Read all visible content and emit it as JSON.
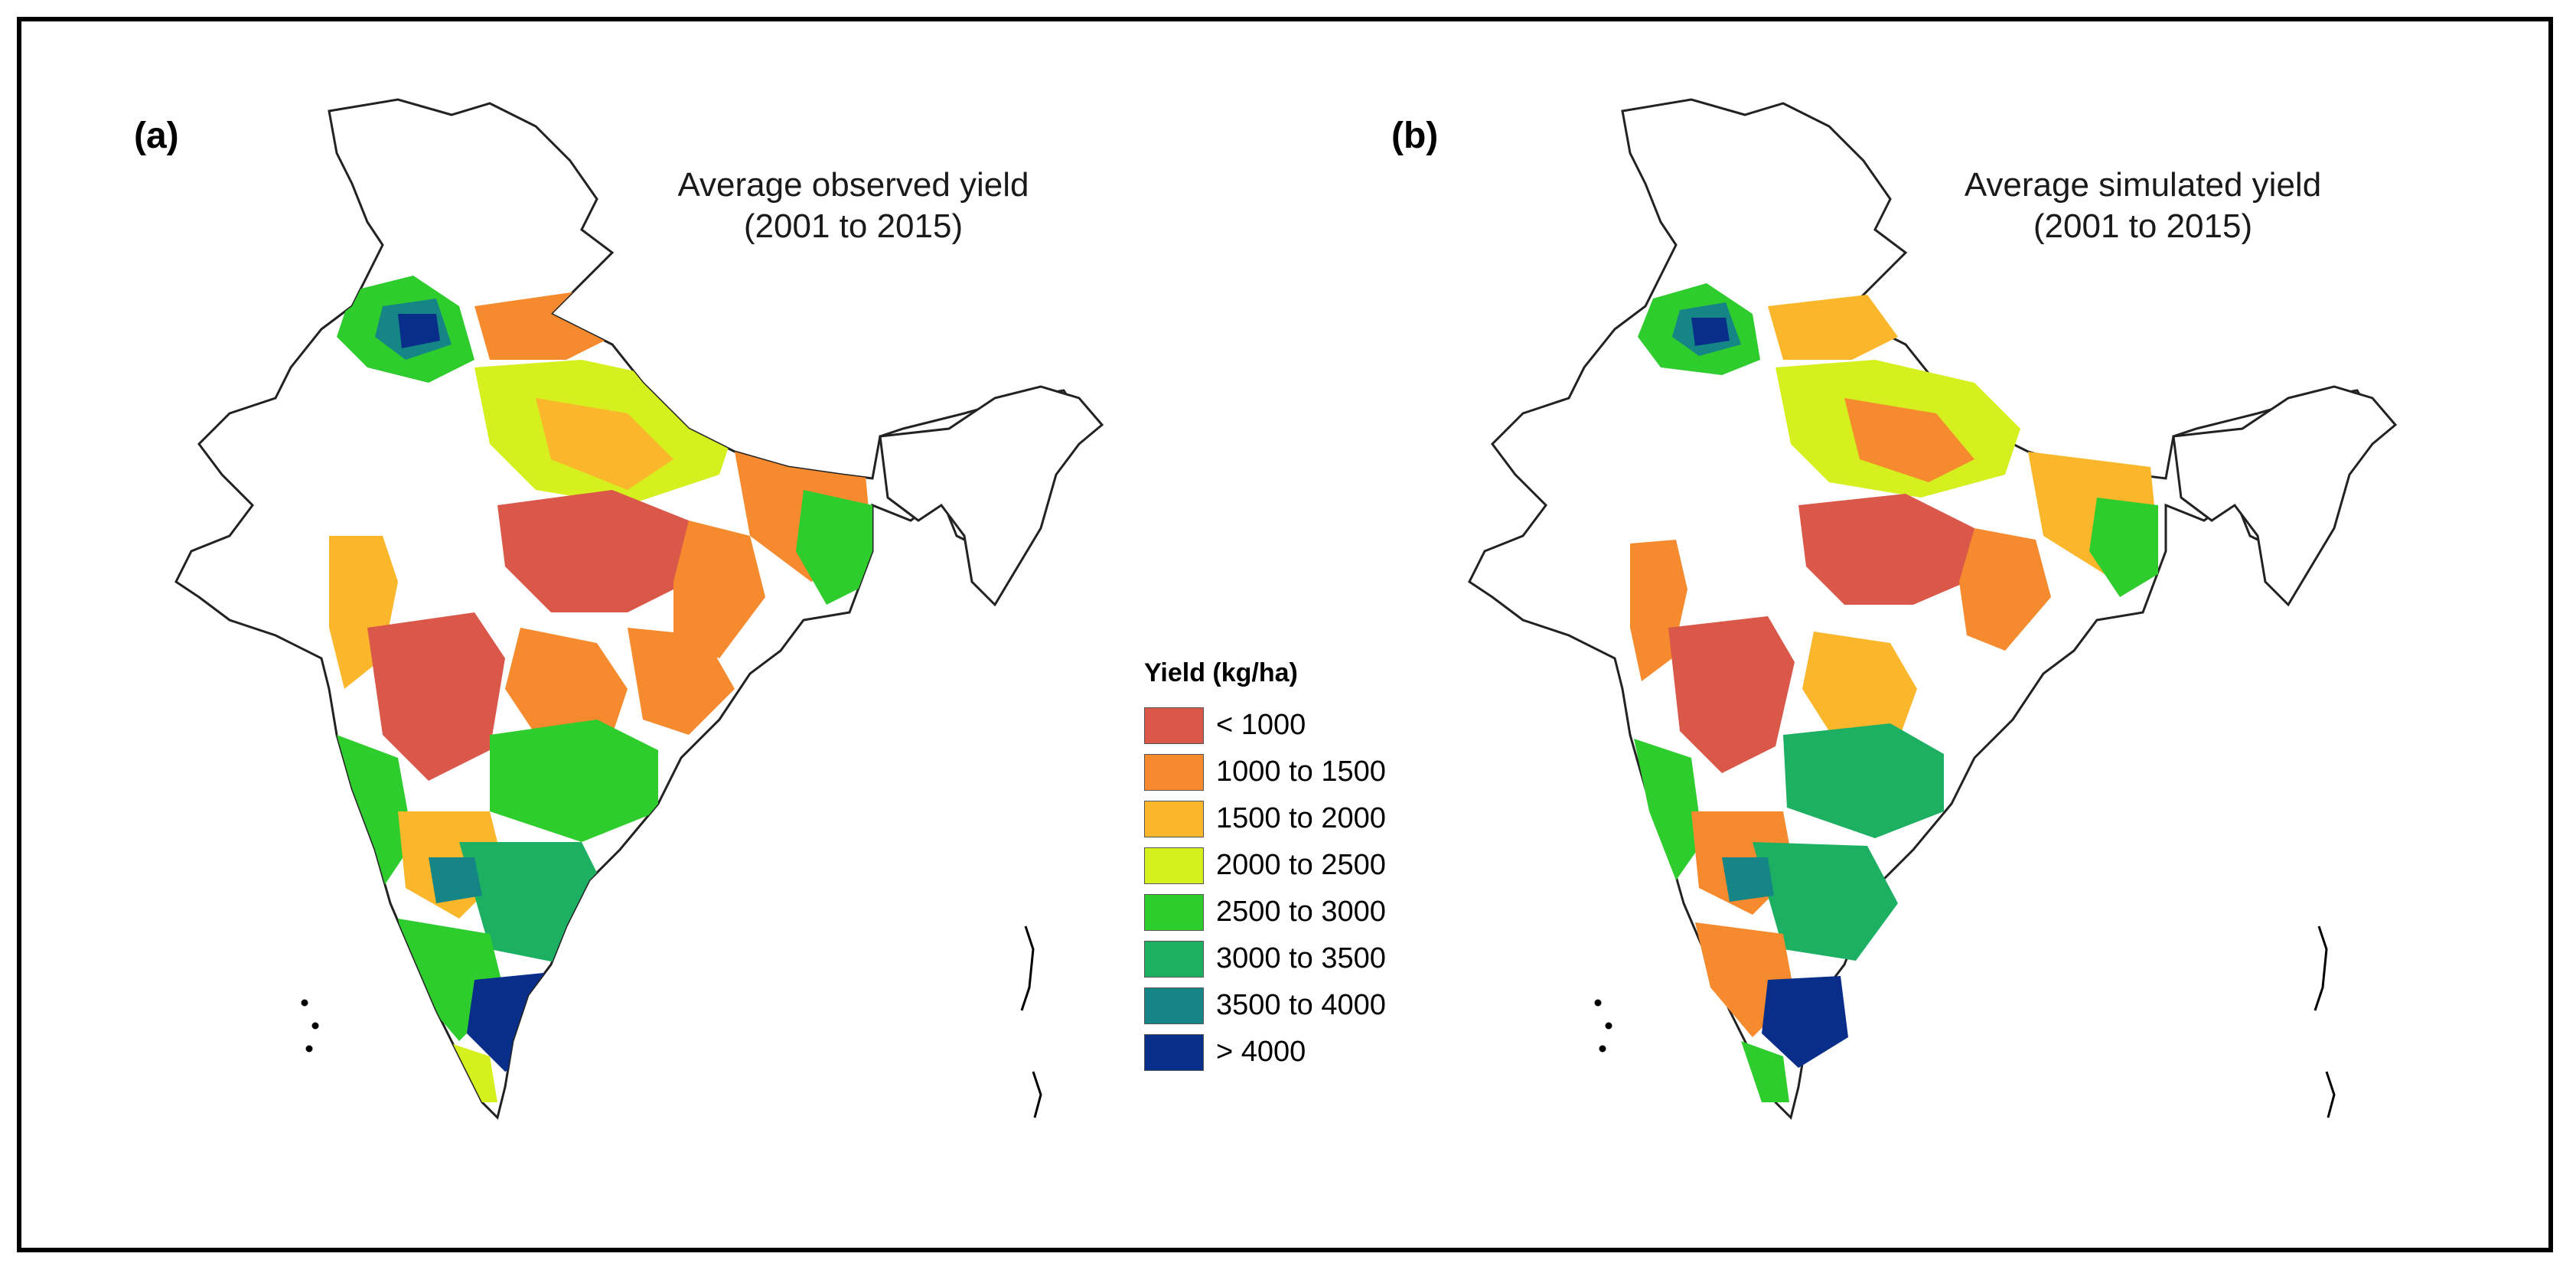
{
  "panels": [
    {
      "id": "a",
      "label": "(a)",
      "title_line1": "Average observed yield",
      "title_line2": "(2001 to 2015)"
    },
    {
      "id": "b",
      "label": "(b)",
      "title_line1": "Average simulated yield",
      "title_line2": "(2001 to 2015)"
    }
  ],
  "legend": {
    "title": "Yield (kg/ha)",
    "items": [
      {
        "label": "< 1000",
        "color": "#d9584a"
      },
      {
        "label": "1000 to 1500",
        "color": "#f58a2e"
      },
      {
        "label": "1500 to 2000",
        "color": "#fbb72b"
      },
      {
        "label": "2000 to 2500",
        "color": "#d6ef1e"
      },
      {
        "label": "2500 to 3000",
        "color": "#2fcc2e"
      },
      {
        "label": "3000 to 3500",
        "color": "#1eb062"
      },
      {
        "label": "3500 to 4000",
        "color": "#158585"
      },
      {
        "label": "> 4000",
        "color": "#082e8a"
      }
    ]
  }
}
